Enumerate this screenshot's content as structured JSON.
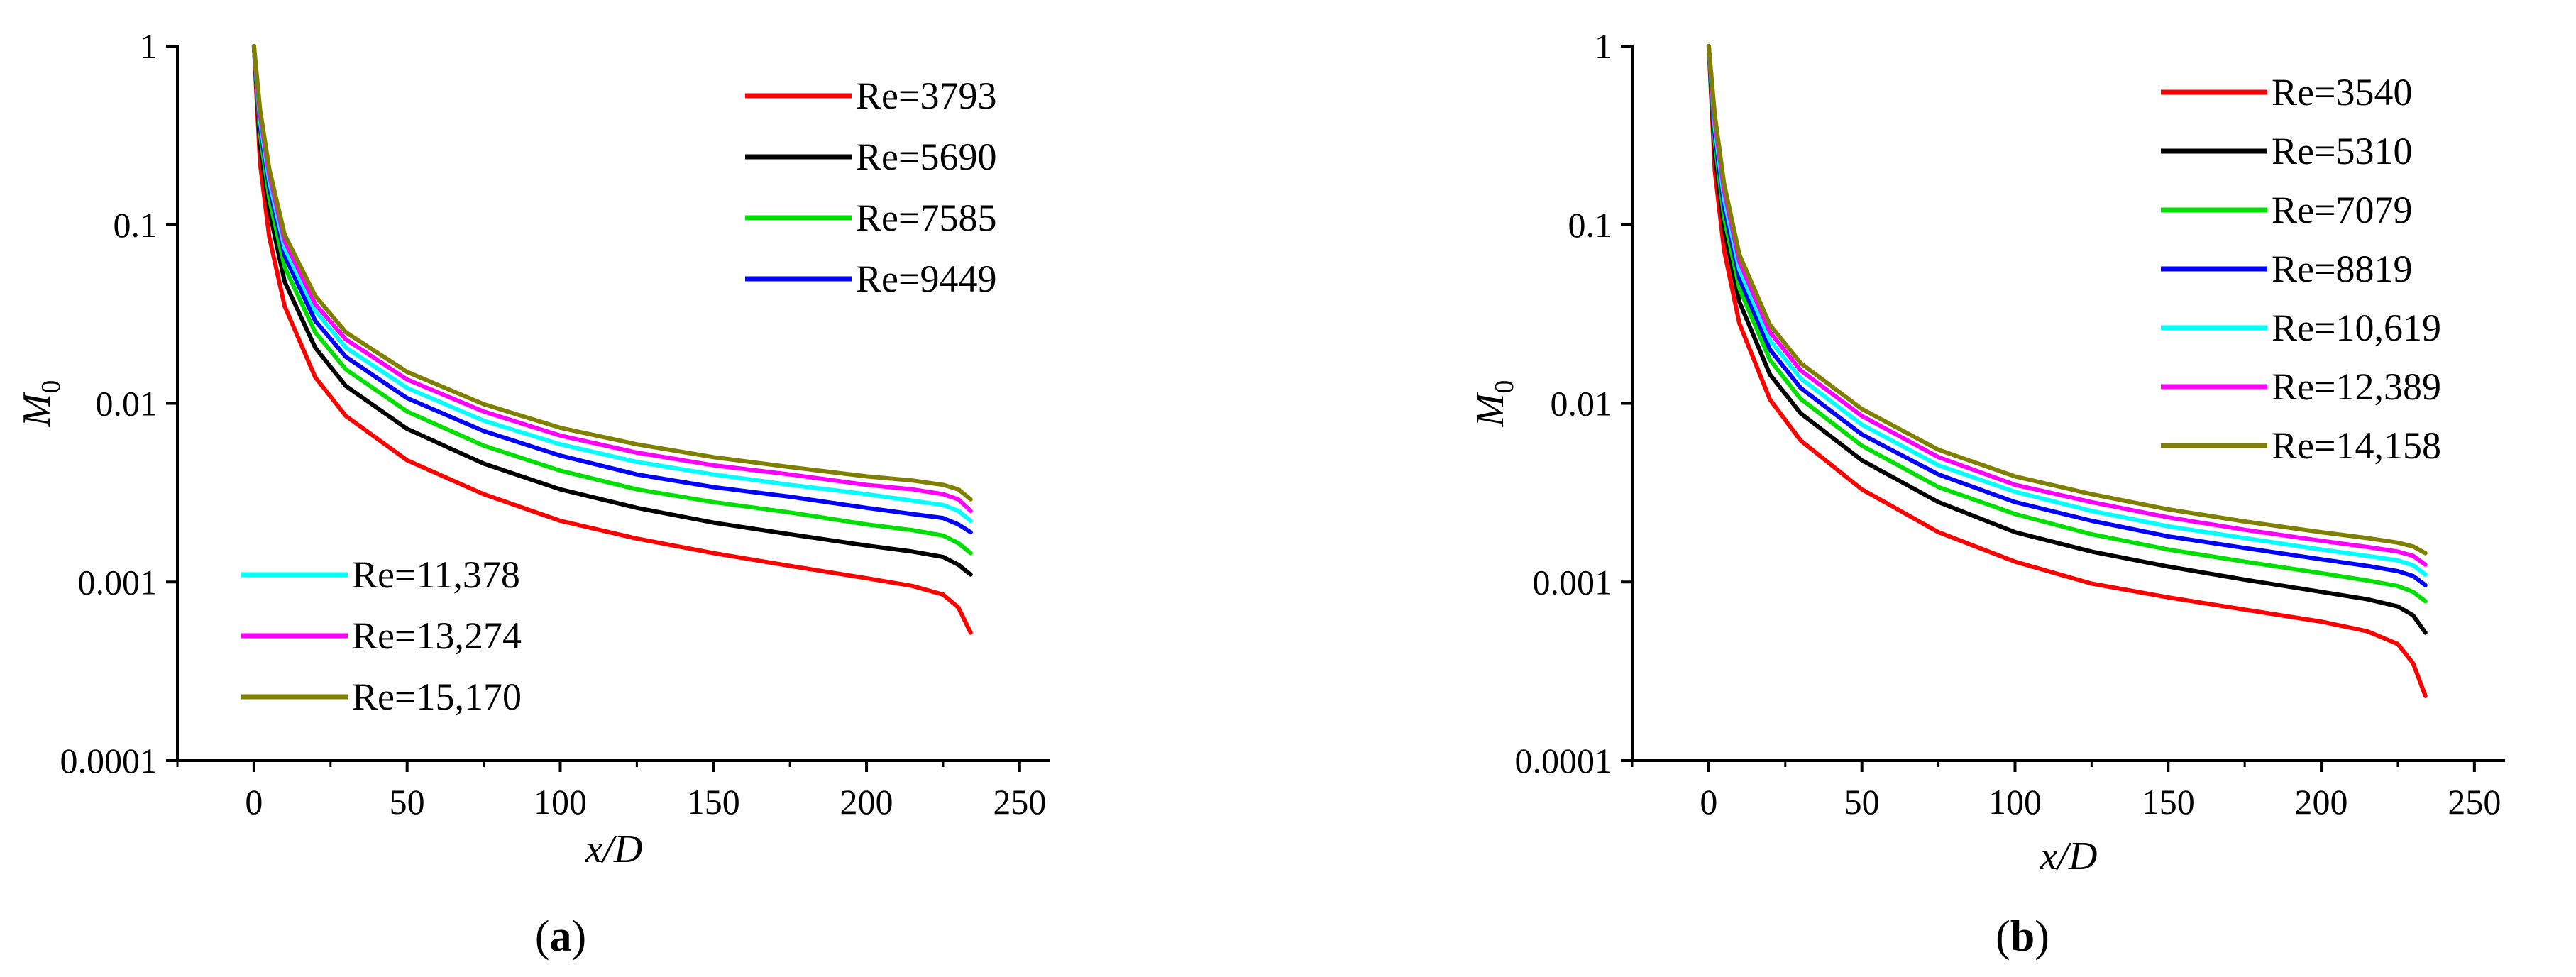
{
  "chart_data": [
    {
      "id": "a",
      "type": "line",
      "panel_label": "a",
      "xlabel": "x/D",
      "ylabel": "M",
      "ylabel_subscript": "0",
      "yscale": "log",
      "xlim": [
        -25,
        260
      ],
      "ylim": [
        0.0001,
        1
      ],
      "xticks": [
        "0",
        "50",
        "100",
        "150",
        "200",
        "250"
      ],
      "yticks": [
        "0.0001",
        "0.001",
        "0.01",
        "0.1",
        "1"
      ],
      "legend_groups": [
        "top-right",
        "bottom-left"
      ],
      "x": [
        0,
        2,
        5,
        10,
        20,
        30,
        50,
        75,
        100,
        125,
        150,
        175,
        200,
        215,
        225,
        230,
        234
      ],
      "series": [
        {
          "name": "Re=3793",
          "color": "#ff0000",
          "legend_group": 0,
          "values": [
            1.0,
            0.22,
            0.085,
            0.035,
            0.014,
            0.0085,
            0.0048,
            0.0031,
            0.0022,
            0.00175,
            0.00145,
            0.00123,
            0.00105,
            0.00095,
            0.00085,
            0.00072,
            0.00052
          ]
        },
        {
          "name": "Re=5690",
          "color": "#000000",
          "legend_group": 0,
          "values": [
            1.0,
            0.28,
            0.12,
            0.048,
            0.0205,
            0.0125,
            0.0072,
            0.0046,
            0.0033,
            0.0026,
            0.00215,
            0.00185,
            0.0016,
            0.00148,
            0.00138,
            0.00125,
            0.0011
          ]
        },
        {
          "name": "Re=7585",
          "color": "#00e000",
          "legend_group": 0,
          "values": [
            1.0,
            0.32,
            0.14,
            0.058,
            0.025,
            0.0155,
            0.009,
            0.0058,
            0.0042,
            0.0033,
            0.0028,
            0.00245,
            0.0021,
            0.00195,
            0.00182,
            0.00165,
            0.00145
          ]
        },
        {
          "name": "Re=9449",
          "color": "#0000ff",
          "legend_group": 0,
          "values": [
            1.0,
            0.35,
            0.16,
            0.067,
            0.029,
            0.0182,
            0.0107,
            0.007,
            0.0051,
            0.004,
            0.0034,
            0.003,
            0.0026,
            0.0024,
            0.00228,
            0.0021,
            0.0019
          ]
        },
        {
          "name": "Re=11,378",
          "color": "#00ffff",
          "legend_group": 1,
          "values": [
            1.0,
            0.38,
            0.175,
            0.074,
            0.033,
            0.0205,
            0.0122,
            0.008,
            0.0059,
            0.0047,
            0.004,
            0.0035,
            0.0031,
            0.00285,
            0.0027,
            0.0025,
            0.0022
          ]
        },
        {
          "name": "Re=13,274",
          "color": "#ff00ff",
          "legend_group": 1,
          "values": [
            1.0,
            0.41,
            0.19,
            0.081,
            0.036,
            0.0228,
            0.0136,
            0.009,
            0.0066,
            0.0053,
            0.0045,
            0.004,
            0.0035,
            0.0033,
            0.0031,
            0.0029,
            0.0025
          ]
        },
        {
          "name": "Re=15,170",
          "color": "#808000",
          "legend_group": 1,
          "values": [
            1.0,
            0.44,
            0.205,
            0.088,
            0.04,
            0.025,
            0.015,
            0.0099,
            0.0073,
            0.0059,
            0.005,
            0.0044,
            0.0039,
            0.0037,
            0.0035,
            0.0033,
            0.0029
          ]
        }
      ]
    },
    {
      "id": "b",
      "type": "line",
      "panel_label": "b",
      "xlabel": "x/D",
      "ylabel": "M",
      "ylabel_subscript": "0",
      "yscale": "log",
      "xlim": [
        -25,
        260
      ],
      "ylim": [
        0.0001,
        1
      ],
      "xticks": [
        "0",
        "50",
        "100",
        "150",
        "200",
        "250"
      ],
      "yticks": [
        "0.0001",
        "0.001",
        "0.01",
        "0.1",
        "1"
      ],
      "legend_groups": [
        "top-right"
      ],
      "x": [
        0,
        2,
        5,
        10,
        20,
        30,
        50,
        75,
        100,
        125,
        150,
        175,
        200,
        215,
        225,
        230,
        234
      ],
      "series": [
        {
          "name": "Re=3540",
          "color": "#ff0000",
          "legend_group": 0,
          "values": [
            1.0,
            0.2,
            0.072,
            0.028,
            0.0105,
            0.0062,
            0.0033,
            0.0019,
            0.0013,
            0.00098,
            0.00082,
            0.0007,
            0.0006,
            0.00053,
            0.00045,
            0.00035,
            0.00023
          ]
        },
        {
          "name": "Re=5310",
          "color": "#000000",
          "legend_group": 0,
          "values": [
            1.0,
            0.25,
            0.095,
            0.037,
            0.0145,
            0.0088,
            0.0048,
            0.0028,
            0.0019,
            0.00148,
            0.00122,
            0.00103,
            0.00088,
            0.0008,
            0.00073,
            0.00065,
            0.00052
          ]
        },
        {
          "name": "Re=7079",
          "color": "#00e000",
          "legend_group": 0,
          "values": [
            1.0,
            0.29,
            0.11,
            0.044,
            0.0175,
            0.0106,
            0.0058,
            0.0034,
            0.0024,
            0.00185,
            0.00152,
            0.0013,
            0.00112,
            0.00102,
            0.00095,
            0.00088,
            0.00078
          ]
        },
        {
          "name": "Re=8819",
          "color": "#0000ff",
          "legend_group": 0,
          "values": [
            1.0,
            0.32,
            0.125,
            0.05,
            0.02,
            0.0122,
            0.0067,
            0.004,
            0.0028,
            0.0022,
            0.0018,
            0.00155,
            0.00134,
            0.00123,
            0.00115,
            0.00108,
            0.00096
          ]
        },
        {
          "name": "Re=10,619",
          "color": "#00ffff",
          "legend_group": 0,
          "values": [
            1.0,
            0.35,
            0.14,
            0.056,
            0.0225,
            0.0138,
            0.0076,
            0.0045,
            0.0032,
            0.0025,
            0.00205,
            0.00176,
            0.00152,
            0.0014,
            0.00132,
            0.00124,
            0.0011
          ]
        },
        {
          "name": "Re=12,389",
          "color": "#ff00ff",
          "legend_group": 0,
          "values": [
            1.0,
            0.38,
            0.155,
            0.062,
            0.025,
            0.0153,
            0.0085,
            0.005,
            0.0035,
            0.0028,
            0.0023,
            0.00196,
            0.0017,
            0.00157,
            0.00148,
            0.0014,
            0.00125
          ]
        },
        {
          "name": "Re=14,158",
          "color": "#808000",
          "legend_group": 0,
          "values": [
            1.0,
            0.41,
            0.17,
            0.068,
            0.0275,
            0.0168,
            0.0093,
            0.0055,
            0.0039,
            0.0031,
            0.00255,
            0.00218,
            0.0019,
            0.00176,
            0.00166,
            0.00158,
            0.00145
          ]
        }
      ]
    }
  ]
}
